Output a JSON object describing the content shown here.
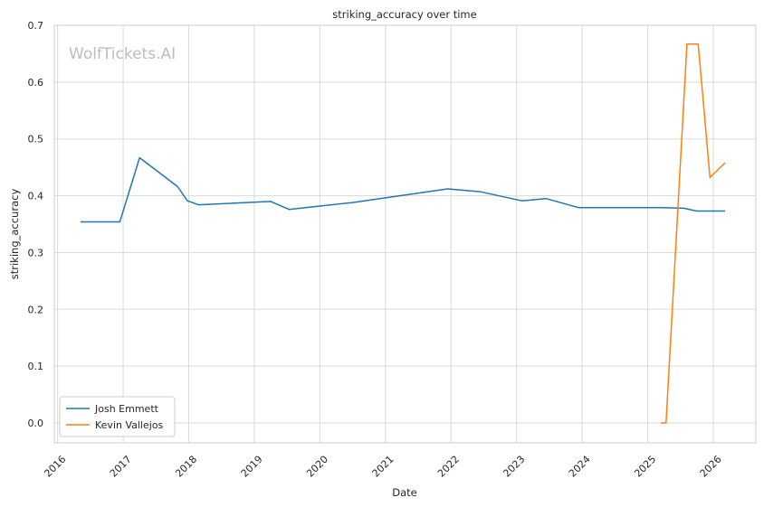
{
  "chart_data": {
    "type": "line",
    "title": "striking_accuracy over time",
    "xlabel": "Date",
    "ylabel": "striking_accuracy",
    "watermark": "WolfTickets.AI",
    "xlim": [
      2015.95,
      2026.65
    ],
    "ylim": [
      -0.035,
      0.7
    ],
    "x_ticks": [
      2016,
      2017,
      2018,
      2019,
      2020,
      2021,
      2022,
      2023,
      2024,
      2025,
      2026
    ],
    "x_tick_labels": [
      "2016",
      "2017",
      "2018",
      "2019",
      "2020",
      "2021",
      "2022",
      "2023",
      "2024",
      "2025",
      "2026"
    ],
    "y_ticks": [
      0.0,
      0.1,
      0.2,
      0.3,
      0.4,
      0.5,
      0.6,
      0.7
    ],
    "y_tick_labels": [
      "0.0",
      "0.1",
      "0.2",
      "0.3",
      "0.4",
      "0.5",
      "0.6",
      "0.7"
    ],
    "grid": true,
    "legend_position": "lower-left",
    "series": [
      {
        "name": "Josh Emmett",
        "color": "#1f77b4",
        "x": [
          2016.35,
          2016.95,
          2017.25,
          2017.83,
          2017.98,
          2018.15,
          2019.25,
          2019.53,
          2020.5,
          2021.95,
          2022.45,
          2023.08,
          2023.45,
          2023.95,
          2025.2,
          2025.55,
          2025.75,
          2026.18
        ],
        "y": [
          0.354,
          0.354,
          0.467,
          0.416,
          0.391,
          0.384,
          0.39,
          0.376,
          0.388,
          0.412,
          0.407,
          0.391,
          0.395,
          0.379,
          0.379,
          0.378,
          0.373,
          0.373
        ]
      },
      {
        "name": "Kevin Vallejos",
        "color": "#ff7f0e",
        "x": [
          2025.2,
          2025.28,
          2025.6,
          2025.77,
          2025.95,
          2026.18
        ],
        "y": [
          0.0,
          0.0,
          0.667,
          0.667,
          0.432,
          0.458
        ]
      }
    ]
  }
}
